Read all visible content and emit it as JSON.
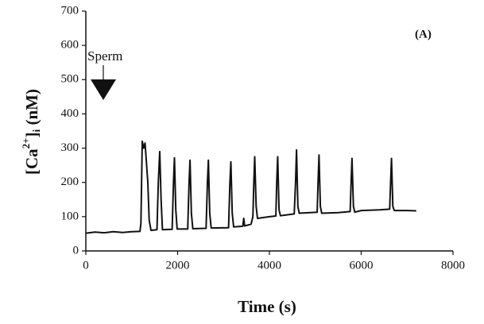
{
  "chart_data": {
    "type": "line",
    "xlabel": "Time (s)",
    "ylabel_parts": [
      "[Ca",
      "2+",
      "]",
      "i",
      " (nM)"
    ],
    "annotations": [
      "(A)",
      "Sperm"
    ],
    "xlim": [
      0,
      8000
    ],
    "xticks": [
      0,
      2000,
      4000,
      6000,
      8000
    ],
    "ylim": [
      0,
      700
    ],
    "yticks": [
      0,
      100,
      200,
      300,
      400,
      500,
      600,
      700
    ],
    "x": [
      0,
      200,
      400,
      600,
      800,
      1000,
      1180,
      1200,
      1230,
      1260,
      1290,
      1320,
      1350,
      1380,
      1420,
      1550,
      1580,
      1610,
      1640,
      1670,
      1880,
      1910,
      1930,
      1960,
      1990,
      2220,
      2250,
      2270,
      2300,
      2330,
      2620,
      2650,
      2670,
      2700,
      2730,
      3110,
      3140,
      3160,
      3190,
      3220,
      3420,
      3440,
      3460,
      3600,
      3640,
      3660,
      3680,
      3710,
      3740,
      4000,
      4140,
      4160,
      4180,
      4210,
      4240,
      4540,
      4570,
      4590,
      4620,
      4650,
      5040,
      5060,
      5080,
      5110,
      5140,
      5500,
      5760,
      5780,
      5800,
      5830,
      5860,
      6000,
      6400,
      6620,
      6640,
      6660,
      6690,
      6720,
      7000,
      7200
    ],
    "series": [
      {
        "color": "#111111",
        "values": [
          52,
          55,
          53,
          56,
          54,
          56,
          57,
          80,
          320,
          300,
          315,
          260,
          200,
          90,
          60,
          62,
          200,
          290,
          150,
          62,
          63,
          200,
          272,
          120,
          64,
          64,
          200,
          265,
          110,
          65,
          66,
          200,
          265,
          110,
          67,
          68,
          200,
          260,
          110,
          70,
          72,
          95,
          73,
          78,
          100,
          200,
          275,
          130,
          95,
          100,
          102,
          200,
          275,
          120,
          103,
          108,
          200,
          295,
          130,
          110,
          113,
          200,
          280,
          130,
          110,
          112,
          115,
          200,
          270,
          130,
          113,
          118,
          120,
          122,
          200,
          270,
          130,
          118,
          118,
          117
        ]
      }
    ]
  }
}
